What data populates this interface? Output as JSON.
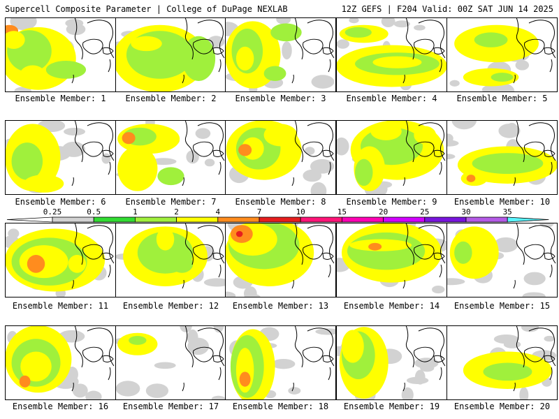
{
  "header": {
    "title": "Supercell Composite Parameter | College of DuPage NEXLAB",
    "run_info": "12Z GEFS | F204 Valid: 00Z SAT JUN 14 2025"
  },
  "panels": [
    {
      "label": "Ensemble Member: 1",
      "blobs": [
        [
          3,
          0.3,
          0.55,
          0.34,
          0.42
        ],
        [
          2,
          0.22,
          0.45,
          0.2,
          0.28
        ],
        [
          3,
          0.25,
          0.78,
          0.12,
          0.14
        ],
        [
          4,
          0.04,
          0.18,
          0.08,
          0.08
        ],
        [
          2,
          0.55,
          0.7,
          0.18,
          0.12
        ],
        [
          3,
          0.08,
          0.3,
          0.1,
          0.12
        ]
      ]
    },
    {
      "label": "Ensemble Member: 2",
      "blobs": [
        [
          3,
          0.4,
          0.55,
          0.42,
          0.45
        ],
        [
          2,
          0.4,
          0.5,
          0.3,
          0.32
        ],
        [
          3,
          0.28,
          0.35,
          0.14,
          0.1
        ],
        [
          2,
          0.75,
          0.55,
          0.15,
          0.3
        ]
      ]
    },
    {
      "label": "Ensemble Member: 3",
      "blobs": [
        [
          3,
          0.25,
          0.5,
          0.25,
          0.45
        ],
        [
          2,
          0.2,
          0.45,
          0.14,
          0.3
        ],
        [
          3,
          0.18,
          0.55,
          0.08,
          0.16
        ],
        [
          2,
          0.55,
          0.2,
          0.14,
          0.12
        ],
        [
          2,
          0.45,
          0.75,
          0.1,
          0.1
        ]
      ]
    },
    {
      "label": "Ensemble Member: 4",
      "blobs": [
        [
          3,
          0.5,
          0.65,
          0.5,
          0.28
        ],
        [
          2,
          0.55,
          0.62,
          0.38,
          0.15
        ],
        [
          3,
          0.55,
          0.6,
          0.22,
          0.08
        ],
        [
          3,
          0.25,
          0.22,
          0.22,
          0.12
        ],
        [
          2,
          0.2,
          0.2,
          0.12,
          0.07
        ]
      ]
    },
    {
      "label": "Ensemble Member: 5",
      "blobs": [
        [
          3,
          0.45,
          0.35,
          0.38,
          0.25
        ],
        [
          2,
          0.4,
          0.3,
          0.15,
          0.1
        ],
        [
          3,
          0.4,
          0.8,
          0.25,
          0.12
        ],
        [
          2,
          0.5,
          0.8,
          0.1,
          0.06
        ]
      ]
    },
    {
      "label": "Ensemble Member: 6",
      "blobs": [
        [
          3,
          0.25,
          0.5,
          0.25,
          0.45
        ],
        [
          2,
          0.2,
          0.55,
          0.14,
          0.25
        ],
        [
          3,
          0.35,
          0.85,
          0.18,
          0.12
        ]
      ]
    },
    {
      "label": "Ensemble Member: 7",
      "blobs": [
        [
          3,
          0.3,
          0.25,
          0.28,
          0.2
        ],
        [
          2,
          0.22,
          0.22,
          0.15,
          0.12
        ],
        [
          4,
          0.12,
          0.24,
          0.06,
          0.08
        ],
        [
          3,
          0.2,
          0.65,
          0.18,
          0.3
        ],
        [
          2,
          0.5,
          0.75,
          0.12,
          0.12
        ]
      ]
    },
    {
      "label": "Ensemble Member: 8",
      "blobs": [
        [
          3,
          0.35,
          0.4,
          0.34,
          0.4
        ],
        [
          2,
          0.3,
          0.38,
          0.2,
          0.28
        ],
        [
          3,
          0.25,
          0.38,
          0.1,
          0.15
        ],
        [
          4,
          0.18,
          0.4,
          0.06,
          0.08
        ],
        [
          3,
          0.5,
          0.2,
          0.15,
          0.15
        ]
      ]
    },
    {
      "label": "Ensemble Member: 9",
      "blobs": [
        [
          3,
          0.55,
          0.4,
          0.42,
          0.4
        ],
        [
          2,
          0.5,
          0.35,
          0.28,
          0.25
        ],
        [
          3,
          0.45,
          0.15,
          0.14,
          0.12
        ],
        [
          3,
          0.8,
          0.2,
          0.1,
          0.12
        ],
        [
          3,
          0.3,
          0.65,
          0.14,
          0.3
        ],
        [
          2,
          0.25,
          0.7,
          0.08,
          0.18
        ]
      ]
    },
    {
      "label": "Ensemble Member: 10",
      "blobs": [
        [
          3,
          0.55,
          0.6,
          0.45,
          0.25
        ],
        [
          2,
          0.55,
          0.58,
          0.32,
          0.14
        ],
        [
          3,
          0.25,
          0.78,
          0.12,
          0.1
        ],
        [
          4,
          0.22,
          0.78,
          0.04,
          0.05
        ]
      ]
    },
    {
      "label": "Ensemble Member: 11",
      "blobs": [
        [
          3,
          0.45,
          0.5,
          0.45,
          0.42
        ],
        [
          2,
          0.4,
          0.52,
          0.34,
          0.32
        ],
        [
          3,
          0.35,
          0.52,
          0.22,
          0.22
        ],
        [
          4,
          0.28,
          0.55,
          0.08,
          0.12
        ],
        [
          3,
          0.65,
          0.55,
          0.08,
          0.12
        ]
      ]
    },
    {
      "label": "Ensemble Member: 12",
      "blobs": [
        [
          3,
          0.45,
          0.45,
          0.38,
          0.4
        ],
        [
          2,
          0.45,
          0.4,
          0.25,
          0.28
        ],
        [
          3,
          0.45,
          0.22,
          0.08,
          0.15
        ],
        [
          2,
          0.6,
          0.55,
          0.1,
          0.12
        ]
      ]
    },
    {
      "label": "Ensemble Member: 13",
      "blobs": [
        [
          3,
          0.4,
          0.4,
          0.4,
          0.45
        ],
        [
          2,
          0.35,
          0.3,
          0.32,
          0.32
        ],
        [
          3,
          0.25,
          0.22,
          0.22,
          0.22
        ],
        [
          4,
          0.15,
          0.15,
          0.1,
          0.12
        ],
        [
          5,
          0.13,
          0.15,
          0.03,
          0.04
        ]
      ]
    },
    {
      "label": "Ensemble Member: 14",
      "blobs": [
        [
          3,
          0.5,
          0.4,
          0.45,
          0.4
        ],
        [
          2,
          0.45,
          0.38,
          0.35,
          0.25
        ],
        [
          3,
          0.4,
          0.3,
          0.28,
          0.08
        ],
        [
          4,
          0.35,
          0.32,
          0.06,
          0.05
        ]
      ]
    },
    {
      "label": "Ensemble Member: 15",
      "blobs": [
        [
          3,
          0.25,
          0.4,
          0.22,
          0.35
        ],
        [
          2,
          0.15,
          0.4,
          0.08,
          0.15
        ]
      ]
    },
    {
      "label": "Ensemble Member: 16",
      "blobs": [
        [
          3,
          0.3,
          0.45,
          0.3,
          0.45
        ],
        [
          2,
          0.28,
          0.5,
          0.22,
          0.32
        ],
        [
          3,
          0.28,
          0.55,
          0.14,
          0.2
        ],
        [
          4,
          0.18,
          0.75,
          0.05,
          0.08
        ]
      ]
    },
    {
      "label": "Ensemble Member: 17",
      "blobs": [
        [
          3,
          0.2,
          0.25,
          0.18,
          0.15
        ],
        [
          2,
          0.2,
          0.2,
          0.08,
          0.06
        ]
      ]
    },
    {
      "label": "Ensemble Member: 18",
      "blobs": [
        [
          3,
          0.25,
          0.55,
          0.2,
          0.5
        ],
        [
          2,
          0.2,
          0.55,
          0.15,
          0.42
        ],
        [
          3,
          0.18,
          0.6,
          0.08,
          0.3
        ],
        [
          4,
          0.18,
          0.72,
          0.05,
          0.1
        ]
      ]
    },
    {
      "label": "Ensemble Member: 19",
      "blobs": [
        [
          3,
          0.25,
          0.5,
          0.22,
          0.48
        ],
        [
          2,
          0.2,
          0.4,
          0.15,
          0.32
        ],
        [
          3,
          0.15,
          0.28,
          0.1,
          0.22
        ]
      ]
    },
    {
      "label": "Ensemble Member: 20",
      "blobs": [
        [
          3,
          0.55,
          0.6,
          0.4,
          0.25
        ],
        [
          2,
          0.55,
          0.62,
          0.22,
          0.12
        ]
      ]
    }
  ],
  "colorbar": {
    "levels": [
      "0.25",
      "0.5",
      "1",
      "2",
      "4",
      "7",
      "10",
      "15",
      "20",
      "25",
      "30",
      "35"
    ],
    "colors": [
      "#d2d2d2",
      "#32dc32",
      "#a0f03c",
      "#ffff00",
      "#ff8c1e",
      "#e61e1e",
      "#ff1478",
      "#ff00b4",
      "#d200ff",
      "#7814dc",
      "#b45ae6",
      "#5af5ff"
    ]
  },
  "map_colors": {
    "field_light": "#d2d2d2",
    "field_green": "#32dc32",
    "field_lime": "#a0f03c",
    "field_yellow": "#ffff00",
    "field_orange": "#ff8c1e",
    "field_red": "#e61e1e",
    "field_pink": "#ff00b4",
    "coast": "#000000"
  }
}
